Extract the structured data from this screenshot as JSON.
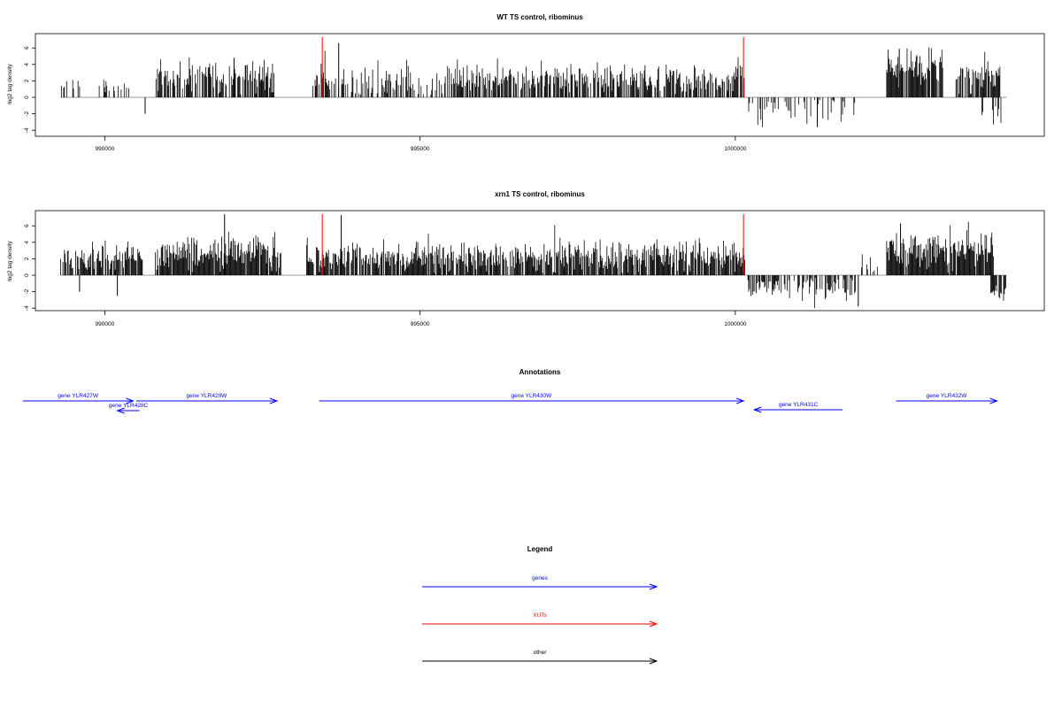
{
  "panels": [
    {
      "title": "WT TS control, ribominus",
      "ylabel": "log2 tag density",
      "yticks": [
        "-4",
        "-2",
        "0",
        "2",
        "4",
        "6"
      ],
      "xticks": [
        "990000",
        "995000",
        "1000000"
      ]
    },
    {
      "title": "xrn1 TS control, ribominus",
      "ylabel": "log2 tag density",
      "yticks": [
        "-4",
        "-2",
        "0",
        "2",
        "4",
        "6"
      ],
      "xticks": [
        "990000",
        "995000",
        "1000000"
      ]
    }
  ],
  "annotations": {
    "title": "Annotations",
    "genes": [
      {
        "label": "gene YLR427W",
        "start": 988700,
        "end": 990450,
        "strand": "+"
      },
      {
        "label": "gene YLR428C",
        "start": 990550,
        "end": 990200,
        "strand": "-"
      },
      {
        "label": "gene YLR429W",
        "start": 990500,
        "end": 992730,
        "strand": "+"
      },
      {
        "label": "gene YLR430W",
        "start": 993400,
        "end": 1000130,
        "strand": "+"
      },
      {
        "label": "gene YLR431C",
        "start": 1001700,
        "end": 1000300,
        "strand": "-"
      },
      {
        "label": "gene YLR432W",
        "start": 1002550,
        "end": 1004150,
        "strand": "+"
      }
    ]
  },
  "legend": {
    "title": "Legend",
    "items": [
      {
        "label": "genes",
        "color": "#0000ff"
      },
      {
        "label": "XUTs",
        "color": "#ff0000"
      },
      {
        "label": "other",
        "color": "#000000"
      }
    ]
  },
  "colors": {
    "gene": "#0000ff",
    "xut": "#ff0000",
    "signal": "#000000",
    "baseline": "#999999"
  },
  "chart_data": [
    {
      "type": "bar",
      "title": "WT TS control, ribominus",
      "ylabel": "log2 tag density",
      "xlim": [
        988900,
        1004900
      ],
      "ylim": [
        -4,
        8
      ],
      "xut_markers": [
        993450,
        1000130
      ],
      "series": [
        {
          "segments": [
            {
              "start": 989300,
              "end": 989600,
              "mean": 1.6,
              "sd": 0.4,
              "density": 0.3
            },
            {
              "start": 989900,
              "end": 990400,
              "mean": 1.4,
              "sd": 0.8,
              "density": 0.25
            },
            {
              "start": 990800,
              "end": 992700,
              "mean": 2.5,
              "sd": 1.0,
              "density": 0.7
            },
            {
              "start": 993300,
              "end": 995400,
              "mean": 1.8,
              "sd": 1.2,
              "density": 0.5
            },
            {
              "start": 995400,
              "end": 1000150,
              "mean": 2.2,
              "sd": 0.9,
              "density": 0.7
            },
            {
              "start": 1000200,
              "end": 1001900,
              "mean": -1.5,
              "sd": 0.8,
              "density": 0.3
            },
            {
              "start": 1002400,
              "end": 1003300,
              "mean": 3.5,
              "sd": 1.1,
              "density": 0.85
            },
            {
              "start": 1003500,
              "end": 1004200,
              "mean": 2.8,
              "sd": 1.0,
              "density": 0.85
            },
            {
              "start": 1003900,
              "end": 1004300,
              "mean": -2.0,
              "sd": 0.7,
              "density": 0.4
            }
          ],
          "spikes": [
            {
              "x": 990640,
              "y": -2.0
            },
            {
              "x": 993710,
              "y": 6.6
            },
            {
              "x": 1001300,
              "y": -3.6
            },
            {
              "x": 992050,
              "y": 4.8
            },
            {
              "x": 1002600,
              "y": 5.9
            }
          ]
        }
      ]
    },
    {
      "type": "bar",
      "title": "xrn1 TS control, ribominus",
      "ylabel": "log2 tag density",
      "xlim": [
        988900,
        1004900
      ],
      "ylim": [
        -4,
        8
      ],
      "xut_markers": [
        993450,
        1000130
      ],
      "series": [
        {
          "segments": [
            {
              "start": 989300,
              "end": 990600,
              "mean": 2.2,
              "sd": 0.9,
              "density": 0.7
            },
            {
              "start": 990800,
              "end": 992800,
              "mean": 2.6,
              "sd": 1.2,
              "density": 0.95
            },
            {
              "start": 993200,
              "end": 1000150,
              "mean": 2.3,
              "sd": 1.0,
              "density": 0.85
            },
            {
              "start": 1000200,
              "end": 1001950,
              "mean": -1.6,
              "sd": 0.8,
              "density": 0.55
            },
            {
              "start": 1002000,
              "end": 1002300,
              "mean": 1.0,
              "sd": 1.2,
              "density": 0.3
            },
            {
              "start": 1002400,
              "end": 1004100,
              "mean": 3.0,
              "sd": 1.1,
              "density": 0.95
            },
            {
              "start": 1004050,
              "end": 1004300,
              "mean": -2.2,
              "sd": 0.5,
              "density": 0.8
            }
          ],
          "spikes": [
            {
              "x": 989600,
              "y": -2.0
            },
            {
              "x": 990200,
              "y": -2.5
            },
            {
              "x": 991900,
              "y": 7.4
            },
            {
              "x": 993750,
              "y": 7.3
            },
            {
              "x": 1001950,
              "y": -3.8
            },
            {
              "x": 1002620,
              "y": 6.3
            }
          ]
        }
      ]
    }
  ]
}
